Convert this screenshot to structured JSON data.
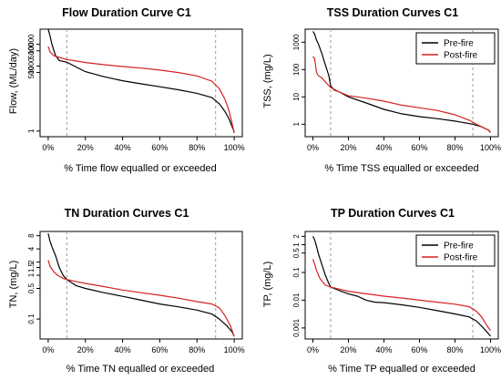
{
  "colors": {
    "pre_fire": "#000000",
    "post_fire": "#d62020",
    "reference_line": "#9a9a9a",
    "axis": "#000000"
  },
  "legend": {
    "entries": [
      {
        "name": "Pre-fire",
        "color": "#000000"
      },
      {
        "name": "Post-fire",
        "color": "#d62020"
      }
    ]
  },
  "chart_data": [
    {
      "type": "line",
      "log_y": true,
      "title": "Flow Duration Curve C1",
      "xlabel": "% Time flow equalled or exceeded",
      "ylabel": "Flow, (ML/day)",
      "x_ticks": [
        "0%",
        "20%",
        "40%",
        "60%",
        "80%",
        "100%"
      ],
      "y_ticks": [
        {
          "value": 1,
          "label": "1"
        },
        {
          "value": 500,
          "label": "500"
        },
        {
          "value": 1000,
          "label": "1000"
        },
        {
          "value": 5000,
          "label": "5000"
        },
        {
          "value": 10000,
          "label": "10000"
        }
      ],
      "ylim": [
        0.55,
        50000
      ],
      "xlim": [
        0,
        100
      ],
      "reference_lines_x": [
        10,
        90
      ],
      "legend": false,
      "series": [
        {
          "name": "Pre-fire",
          "color": "#000000",
          "points": [
            [
              0,
              50000
            ],
            [
              1,
              25000
            ],
            [
              2,
              10000
            ],
            [
              4,
              3000
            ],
            [
              6,
              1800
            ],
            [
              10,
              1500
            ],
            [
              15,
              900
            ],
            [
              20,
              550
            ],
            [
              30,
              320
            ],
            [
              40,
              210
            ],
            [
              50,
              150
            ],
            [
              60,
              110
            ],
            [
              70,
              80
            ],
            [
              80,
              55
            ],
            [
              88,
              35
            ],
            [
              92,
              18
            ],
            [
              95,
              8
            ],
            [
              97,
              4
            ],
            [
              99,
              1.5
            ],
            [
              100,
              0.9
            ]
          ]
        },
        {
          "name": "Post-fire",
          "color": "#d62020",
          "points": [
            [
              0,
              8000
            ],
            [
              1,
              4500
            ],
            [
              3,
              3000
            ],
            [
              6,
              2500
            ],
            [
              10,
              2000
            ],
            [
              15,
              1700
            ],
            [
              20,
              1450
            ],
            [
              30,
              1150
            ],
            [
              40,
              950
            ],
            [
              50,
              800
            ],
            [
              60,
              650
            ],
            [
              70,
              500
            ],
            [
              80,
              350
            ],
            [
              88,
              200
            ],
            [
              92,
              90
            ],
            [
              95,
              30
            ],
            [
              97,
              10
            ],
            [
              99,
              2
            ],
            [
              100,
              0.8
            ]
          ]
        }
      ]
    },
    {
      "type": "line",
      "log_y": true,
      "title": "TSS Duration Curves C1",
      "xlabel": "% Time TSS equalled or exceeded",
      "ylabel": "TSS, (mg/L)",
      "x_ticks": [
        "0%",
        "20%",
        "40%",
        "60%",
        "80%",
        "100%"
      ],
      "y_ticks": [
        {
          "value": 1,
          "label": "1"
        },
        {
          "value": 10,
          "label": "10"
        },
        {
          "value": 100,
          "label": "100"
        },
        {
          "value": 1000,
          "label": "1000"
        }
      ],
      "ylim": [
        0.35,
        3000
      ],
      "xlim": [
        0,
        100
      ],
      "reference_lines_x": [
        10,
        90
      ],
      "legend": true,
      "series": [
        {
          "name": "Pre-fire",
          "color": "#000000",
          "points": [
            [
              0,
              2500
            ],
            [
              1,
              2000
            ],
            [
              2,
              1200
            ],
            [
              3,
              900
            ],
            [
              5,
              400
            ],
            [
              7,
              150
            ],
            [
              9,
              60
            ],
            [
              10,
              25
            ],
            [
              12,
              18
            ],
            [
              15,
              15
            ],
            [
              20,
              10
            ],
            [
              30,
              6
            ],
            [
              40,
              3.5
            ],
            [
              50,
              2.4
            ],
            [
              60,
              1.9
            ],
            [
              70,
              1.6
            ],
            [
              80,
              1.3
            ],
            [
              90,
              1.0
            ],
            [
              95,
              0.8
            ],
            [
              99,
              0.6
            ],
            [
              100,
              0.5
            ]
          ]
        },
        {
          "name": "Post-fire",
          "color": "#d62020",
          "points": [
            [
              0,
              300
            ],
            [
              1,
              250
            ],
            [
              2,
              80
            ],
            [
              3,
              60
            ],
            [
              5,
              50
            ],
            [
              8,
              30
            ],
            [
              10,
              22
            ],
            [
              15,
              15
            ],
            [
              20,
              11
            ],
            [
              30,
              9
            ],
            [
              40,
              7
            ],
            [
              50,
              5
            ],
            [
              60,
              4
            ],
            [
              70,
              3.2
            ],
            [
              80,
              2.2
            ],
            [
              88,
              1.4
            ],
            [
              92,
              1.0
            ],
            [
              95,
              0.8
            ],
            [
              99,
              0.6
            ],
            [
              100,
              0.5
            ]
          ]
        }
      ]
    },
    {
      "type": "line",
      "log_y": true,
      "title": "TN Duration Curves C1",
      "xlabel": "% Time TN equalled or exceeded",
      "ylabel": "TN, (mg/L)",
      "x_ticks": [
        "0%",
        "20%",
        "40%",
        "60%",
        "80%",
        "100%"
      ],
      "y_ticks": [
        {
          "value": 0.1,
          "label": "0.1"
        },
        {
          "value": 0.5,
          "label": "0.5"
        },
        {
          "value": 1,
          "label": "1"
        },
        {
          "value": 1.5,
          "label": "1.5"
        },
        {
          "value": 2,
          "label": "2"
        },
        {
          "value": 4,
          "label": "4"
        },
        {
          "value": 8,
          "label": "8"
        }
      ],
      "ylim": [
        0.035,
        10
      ],
      "xlim": [
        0,
        100
      ],
      "reference_lines_x": [
        10,
        90
      ],
      "legend": false,
      "series": [
        {
          "name": "Pre-fire",
          "color": "#000000",
          "points": [
            [
              0,
              9
            ],
            [
              1,
              6
            ],
            [
              2,
              4.5
            ],
            [
              4,
              2.8
            ],
            [
              6,
              1.5
            ],
            [
              8,
              1.0
            ],
            [
              10,
              0.8
            ],
            [
              15,
              0.58
            ],
            [
              20,
              0.5
            ],
            [
              30,
              0.4
            ],
            [
              40,
              0.33
            ],
            [
              50,
              0.27
            ],
            [
              60,
              0.22
            ],
            [
              70,
              0.19
            ],
            [
              80,
              0.16
            ],
            [
              88,
              0.13
            ],
            [
              92,
              0.1
            ],
            [
              96,
              0.07
            ],
            [
              99,
              0.05
            ],
            [
              100,
              0.04
            ]
          ]
        },
        {
          "name": "Post-fire",
          "color": "#d62020",
          "points": [
            [
              0,
              2.2
            ],
            [
              1,
              1.6
            ],
            [
              3,
              1.2
            ],
            [
              5,
              1.0
            ],
            [
              8,
              0.85
            ],
            [
              10,
              0.8
            ],
            [
              15,
              0.72
            ],
            [
              20,
              0.65
            ],
            [
              30,
              0.55
            ],
            [
              40,
              0.46
            ],
            [
              50,
              0.4
            ],
            [
              60,
              0.35
            ],
            [
              70,
              0.3
            ],
            [
              80,
              0.25
            ],
            [
              88,
              0.22
            ],
            [
              92,
              0.18
            ],
            [
              95,
              0.12
            ],
            [
              98,
              0.07
            ],
            [
              100,
              0.04
            ]
          ]
        }
      ]
    },
    {
      "type": "line",
      "log_y": true,
      "title": "TP Duration Curves C1",
      "xlabel": "% Time TP equalled or exceeded",
      "ylabel": "TP, (mg/L)",
      "x_ticks": [
        "0%",
        "20%",
        "40%",
        "60%",
        "80%",
        "100%"
      ],
      "y_ticks": [
        {
          "value": 0.001,
          "label": "0.001"
        },
        {
          "value": 0.01,
          "label": "0.01"
        },
        {
          "value": 0.1,
          "label": "0.1"
        },
        {
          "value": 0.5,
          "label": "0.5"
        },
        {
          "value": 1,
          "label": "1"
        },
        {
          "value": 2,
          "label": "2"
        }
      ],
      "ylim": [
        0.0004,
        3
      ],
      "xlim": [
        0,
        100
      ],
      "reference_lines_x": [
        10,
        90
      ],
      "legend": true,
      "series": [
        {
          "name": "Pre-fire",
          "color": "#000000",
          "points": [
            [
              0,
              2
            ],
            [
              1,
              1.5
            ],
            [
              2,
              0.9
            ],
            [
              3,
              0.5
            ],
            [
              5,
              0.2
            ],
            [
              7,
              0.08
            ],
            [
              9,
              0.04
            ],
            [
              10,
              0.03
            ],
            [
              15,
              0.022
            ],
            [
              20,
              0.017
            ],
            [
              25,
              0.014
            ],
            [
              30,
              0.01
            ],
            [
              35,
              0.0085
            ],
            [
              40,
              0.0082
            ],
            [
              50,
              0.0068
            ],
            [
              60,
              0.0055
            ],
            [
              70,
              0.0042
            ],
            [
              80,
              0.0032
            ],
            [
              88,
              0.0025
            ],
            [
              92,
              0.0018
            ],
            [
              96,
              0.001
            ],
            [
              99,
              0.0006
            ],
            [
              100,
              0.0005
            ]
          ]
        },
        {
          "name": "Post-fire",
          "color": "#d62020",
          "points": [
            [
              0,
              0.3
            ],
            [
              1,
              0.2
            ],
            [
              2,
              0.12
            ],
            [
              4,
              0.06
            ],
            [
              7,
              0.035
            ],
            [
              10,
              0.03
            ],
            [
              15,
              0.025
            ],
            [
              20,
              0.021
            ],
            [
              30,
              0.017
            ],
            [
              40,
              0.014
            ],
            [
              50,
              0.012
            ],
            [
              60,
              0.01
            ],
            [
              70,
              0.0085
            ],
            [
              80,
              0.0072
            ],
            [
              88,
              0.0058
            ],
            [
              92,
              0.004
            ],
            [
              95,
              0.0025
            ],
            [
              98,
              0.0012
            ],
            [
              100,
              0.0008
            ]
          ]
        }
      ]
    }
  ]
}
